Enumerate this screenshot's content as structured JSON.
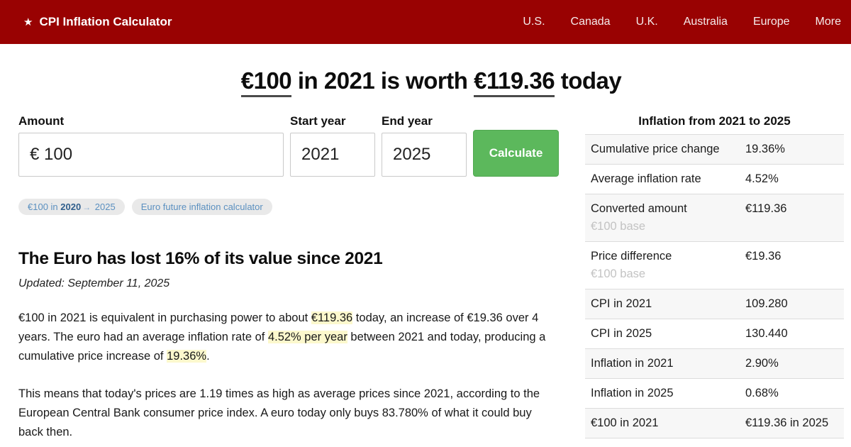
{
  "colors": {
    "header_bg": "#990202",
    "button_green": "#5cb85c",
    "highlight_yellow": "#fcf8cd",
    "badge_bg": "#e9e9e9",
    "badge_text": "#5b90c0",
    "table_stripe": "#f7f7f7",
    "table_border": "#dcdcdc"
  },
  "header": {
    "star_icon": "★",
    "brand": "CPI Inflation Calculator",
    "nav": [
      "U.S.",
      "Canada",
      "U.K.",
      "Australia",
      "Europe",
      "More"
    ]
  },
  "headline": {
    "amount": "€100",
    "mid1": " in 2021 is worth ",
    "result": "€119.36",
    "mid2": " today"
  },
  "form": {
    "amount_label": "Amount",
    "amount_value": "€ 100",
    "start_year_label": "Start year",
    "start_year_value": "2021",
    "end_year_label": "End year",
    "end_year_value": "2025",
    "calculate_label": "Calculate"
  },
  "badges": {
    "badge1_pre": "€100 in ",
    "badge1_bold": "2020",
    "badge1_arrow": "→",
    "badge1_post": " 2025",
    "badge2": "Euro future inflation calculator"
  },
  "article": {
    "title": "The Euro has lost 16% of its value since 2021",
    "updated": "Updated: September 11, 2025",
    "p1_segments": [
      {
        "text": "€100 in 2021 is equivalent in purchasing power to about "
      },
      {
        "text": "€119.36"
      },
      {
        "text": " today, an increase of €19.36 over 4 years. The euro had an average inflation rate of "
      },
      {
        "text": "4.52% per year"
      },
      {
        "text": " between 2021 and today, producing a cumulative price increase of "
      },
      {
        "text": "19.36%"
      },
      {
        "text": "."
      }
    ],
    "p2": "This means that today's prices are 1.19 times as high as average prices since 2021, according to the European Central Bank consumer price index. A euro today only buys 83.780% of what it could buy back then."
  },
  "summary_table": {
    "title": "Inflation from 2021 to 2025",
    "rows": [
      {
        "label": "Cumulative price change",
        "value": "19.36%"
      },
      {
        "label": "Average inflation rate",
        "value": "4.52%"
      },
      {
        "label": "Converted amount",
        "sublabel": "€100 base",
        "value": "€119.36"
      },
      {
        "label": "Price difference",
        "sublabel": "€100 base",
        "value": "€19.36"
      },
      {
        "label": "CPI in 2021",
        "value": "109.280"
      },
      {
        "label": "CPI in 2025",
        "value": "130.440"
      },
      {
        "label": "Inflation in 2021",
        "value": "2.90%"
      },
      {
        "label": "Inflation in 2025",
        "value": "0.68%"
      },
      {
        "label": "€100 in 2021",
        "value": "€119.36 in 2025"
      }
    ]
  }
}
